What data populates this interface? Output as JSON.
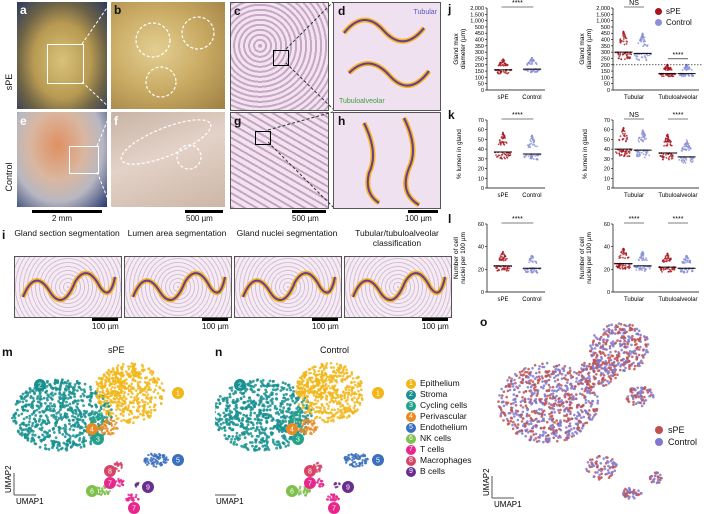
{
  "panel_labels": {
    "a": "a",
    "b": "b",
    "c": "c",
    "d": "d",
    "e": "e",
    "f": "f",
    "g": "g",
    "h": "h",
    "i": "i",
    "j": "j",
    "k": "k",
    "l": "l",
    "m": "m",
    "n": "n",
    "o": "o"
  },
  "row_labels": {
    "spe": "sPE",
    "control": "Control"
  },
  "histology_labels": {
    "tubular": "Tubular",
    "tubuloalveolar": "Tubuloalveolar"
  },
  "scalebars": {
    "a": "2 mm",
    "f": "500 µm",
    "g": "500 µm",
    "h": "100 µm",
    "i": "100 µm"
  },
  "segmentation_titles": [
    "Gland section segmentation",
    "Lumen area segmentation",
    "Gland nuclei segmentation",
    "Tubular/tubuloalveolar classification"
  ],
  "legend": {
    "spe": "sPE",
    "control": "Control"
  },
  "significance": {
    "j_left": "****",
    "j_right_tubular": "NS",
    "j_right_tubulo": "****",
    "k_left": "****",
    "k_right_tubular": "NS",
    "k_right_tubulo": "****",
    "l_left": "****",
    "l_right_tubular": "****",
    "l_right_tubulo": "****"
  },
  "colors": {
    "spe": "#a8141e",
    "control": "#8a8fd6",
    "stroma": "#17908f",
    "epithelium": "#f2b619",
    "perivascular": "#ea8a22",
    "endothelium": "#3a6fbd",
    "nk": "#7fbf4b",
    "tcell": "#e8278d",
    "macrophage": "#d64466",
    "bcell": "#6a2c8f",
    "cycling": "#23a28a"
  },
  "umap": {
    "m_title": "sPE",
    "n_title": "Control",
    "x_axis": "UMAP1",
    "y_axis": "UMAP2"
  },
  "cell_types": [
    {
      "n": "1",
      "name": "Epithelium",
      "color": "#f2b619"
    },
    {
      "n": "2",
      "name": "Stroma",
      "color": "#17908f"
    },
    {
      "n": "3",
      "name": "Cycling cells",
      "color": "#23a28a"
    },
    {
      "n": "4",
      "name": "Perivascular",
      "color": "#ea8a22"
    },
    {
      "n": "5",
      "name": "Endothelium",
      "color": "#3a6fbd"
    },
    {
      "n": "6",
      "name": "NK cells",
      "color": "#7fbf4b"
    },
    {
      "n": "7",
      "name": "T cells",
      "color": "#e8278d"
    },
    {
      "n": "8",
      "name": "Macrophages",
      "color": "#d64466"
    },
    {
      "n": "9",
      "name": "B cells",
      "color": "#6a2c8f"
    }
  ],
  "chart_data": [
    {
      "type": "scatter",
      "panel": "j-left",
      "ylabel": "Gland max diameter (µm)",
      "categories": [
        "sPE",
        "Control"
      ],
      "yticks": [
        "0",
        "50",
        "100",
        "150",
        "200",
        "250",
        "300",
        "350",
        "400",
        "450",
        "500",
        "1,000",
        "1,500",
        "2,000"
      ],
      "medians": [
        160,
        165
      ],
      "significance": "****"
    },
    {
      "type": "scatter",
      "panel": "j-right",
      "ylabel": "Gland max diameter (µm)",
      "categories": [
        "Tubular",
        "Tubuloalveolar"
      ],
      "yticks": [
        "0",
        "50",
        "100",
        "150",
        "200",
        "250",
        "300",
        "350",
        "400",
        "450",
        "500",
        "1,000",
        "1,500",
        "2,000"
      ],
      "medians": [
        [
          300,
          290
        ],
        [
          130,
          130
        ]
      ],
      "significance": [
        "NS",
        "****"
      ],
      "reference_line": 200
    },
    {
      "type": "scatter",
      "panel": "k-left",
      "ylabel": "% lumen in gland",
      "categories": [
        "sPE",
        "Control"
      ],
      "yticks": [
        "0",
        "10",
        "20",
        "30",
        "40",
        "50",
        "60",
        "70"
      ],
      "medians": [
        37,
        35
      ],
      "significance": "****"
    },
    {
      "type": "scatter",
      "panel": "k-right",
      "ylabel": "% lumen in gland",
      "categories": [
        "Tubular",
        "Tubuloalveolar"
      ],
      "yticks": [
        "0",
        "10",
        "20",
        "30",
        "40",
        "50",
        "60",
        "70"
      ],
      "medians": [
        [
          40,
          39
        ],
        [
          36,
          32
        ]
      ],
      "significance": [
        "NS",
        "****"
      ]
    },
    {
      "type": "scatter",
      "panel": "l-left",
      "ylabel": "Number of cell nuclei per 100 µm",
      "categories": [
        "sPE",
        "Control"
      ],
      "yticks": [
        "0",
        "20",
        "40",
        "60"
      ],
      "medians": [
        23,
        21
      ],
      "significance": "****"
    },
    {
      "type": "scatter",
      "panel": "l-right",
      "ylabel": "Number of cell nuclei per 100 µm",
      "categories": [
        "Tubular",
        "Tubuloalveolar"
      ],
      "yticks": [
        "0",
        "20",
        "40",
        "60"
      ],
      "medians": [
        [
          25,
          23
        ],
        [
          22,
          21
        ]
      ],
      "significance": [
        "****",
        "****"
      ]
    }
  ]
}
